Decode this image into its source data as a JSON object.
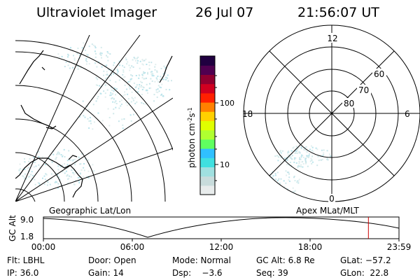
{
  "header": {
    "instrument": "Ultraviolet Imager",
    "date": "26 Jul 07",
    "time": "21:56:07 UT"
  },
  "colorbar": {
    "unit_label": "photon cm",
    "unit_sup1": "-2",
    "unit_mid": "s",
    "unit_sup2": "-1",
    "ticks": [
      {
        "label": "100",
        "value": 100
      },
      {
        "label": "10",
        "value": 10
      }
    ],
    "colors": [
      "#e8ecec",
      "#c8dcdc",
      "#a0e0e0",
      "#40e0e0",
      "#30c0ff",
      "#60ff60",
      "#b0ff30",
      "#e0ff00",
      "#ffd000",
      "#ff8000",
      "#ff2000",
      "#d00020",
      "#900030",
      "#500050",
      "#200040"
    ]
  },
  "polar_plot": {
    "lat_labels": [
      "80",
      "70",
      "60"
    ],
    "mlt_labels": {
      "top": "12",
      "bottom": "0",
      "left": "18",
      "right": "6"
    }
  },
  "timeline": {
    "left_title": "Geographic Lat/Lon",
    "right_title": "Apex MLat/MLT",
    "y_axis_label": "GC Alt",
    "y_ticks": [
      "9.0",
      "1.8"
    ],
    "x_ticks": [
      "00:00",
      "06:00",
      "12:00",
      "18:00",
      "23:59"
    ],
    "current_time_fraction": 0.914,
    "marker_color": "#cc0000"
  },
  "info": {
    "filter": "Flt: LBHL",
    "door": "Door: Open",
    "mode": "Mode: Normal",
    "gc_alt": "GC Alt: 6.8 Re",
    "glat": "GLat: −57.2",
    "ip": "IP: 36.0",
    "gain": "Gain: 14",
    "dsp": "Dsp:    −3.6",
    "seq": "Seq: 39",
    "glon": "GLon:  22.8"
  }
}
